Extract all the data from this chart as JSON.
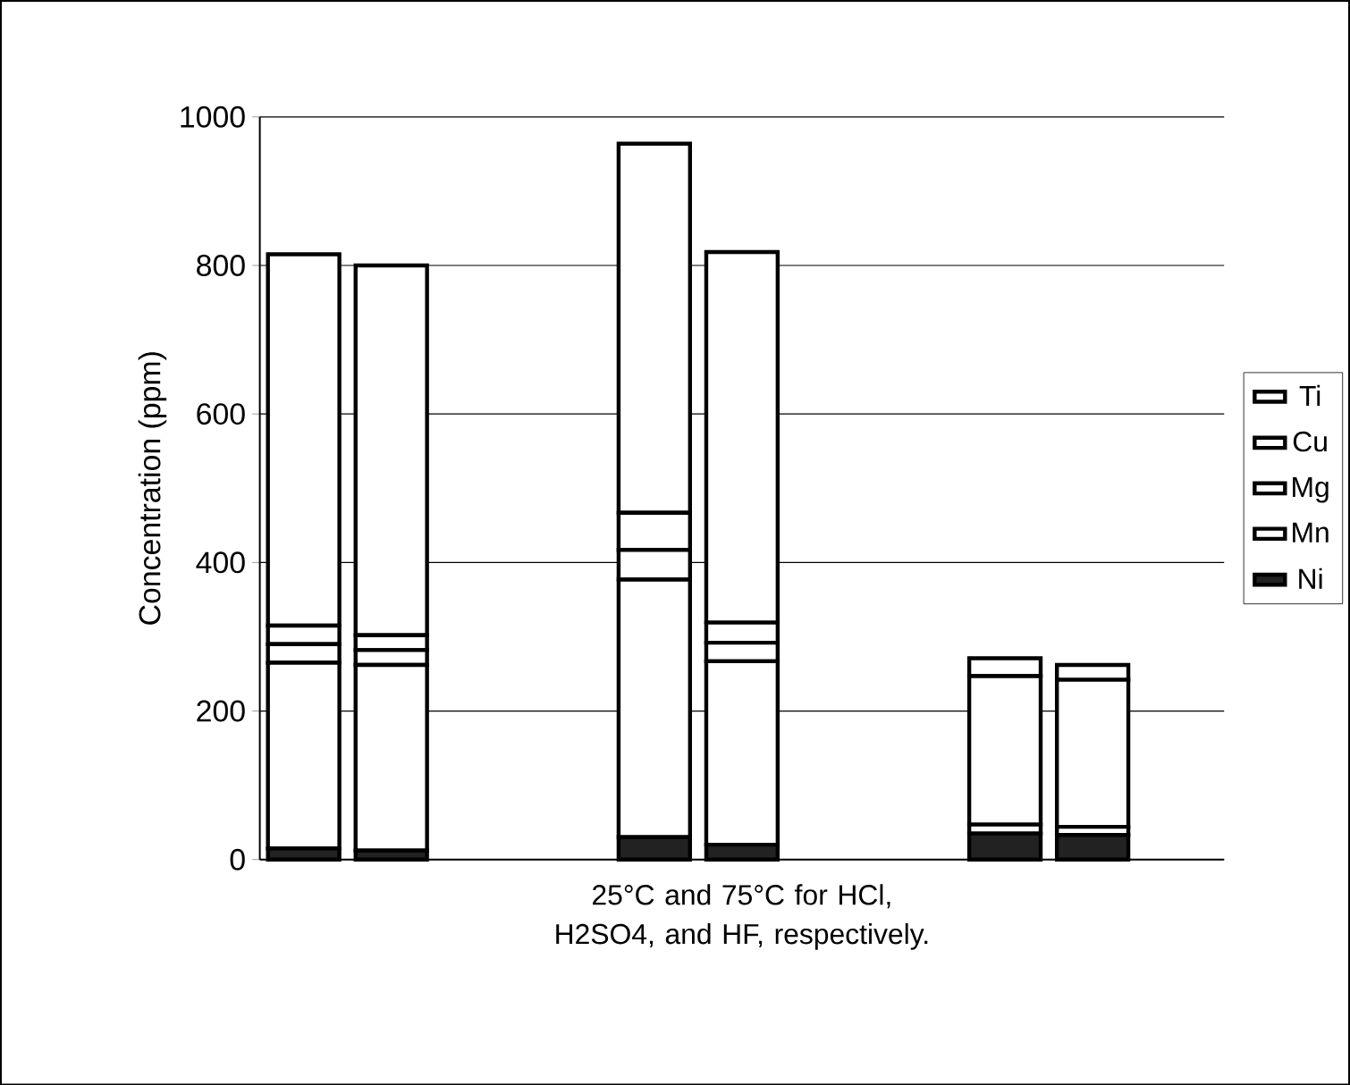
{
  "chart_data": {
    "type": "bar",
    "stacked": true,
    "xlabel": "25°C and 75°C for HCl, H2SO4, and HF, respectively.",
    "ylabel": "Concentration (ppm)",
    "categories": [
      null,
      null,
      null,
      null,
      null,
      null,
      null,
      null,
      null,
      null,
      null
    ],
    "series": [
      {
        "name": "Ni",
        "color": "#222222",
        "values": [
          15,
          12,
          null,
          null,
          30,
          20,
          null,
          null,
          35,
          33,
          null
        ]
      },
      {
        "name": "Mn",
        "color": "#ffffff",
        "values": [
          250,
          250,
          null,
          null,
          347,
          247,
          null,
          null,
          12,
          11,
          null
        ]
      },
      {
        "name": "Mg",
        "color": "#ffffff",
        "values": [
          25,
          20,
          null,
          null,
          40,
          25,
          null,
          null,
          0,
          0,
          null
        ]
      },
      {
        "name": "Cu",
        "color": "#ffffff",
        "values": [
          25,
          20,
          null,
          null,
          50,
          27,
          null,
          null,
          200,
          198,
          null
        ]
      },
      {
        "name": "Ti",
        "color": "#ffffff",
        "values": [
          500,
          498,
          null,
          null,
          497,
          499,
          null,
          null,
          24,
          20,
          null
        ]
      }
    ],
    "ylim": [
      0,
      1000
    ],
    "yticks": [
      0,
      200,
      400,
      600,
      800,
      1000
    ],
    "grid": "y",
    "legend": "right"
  }
}
